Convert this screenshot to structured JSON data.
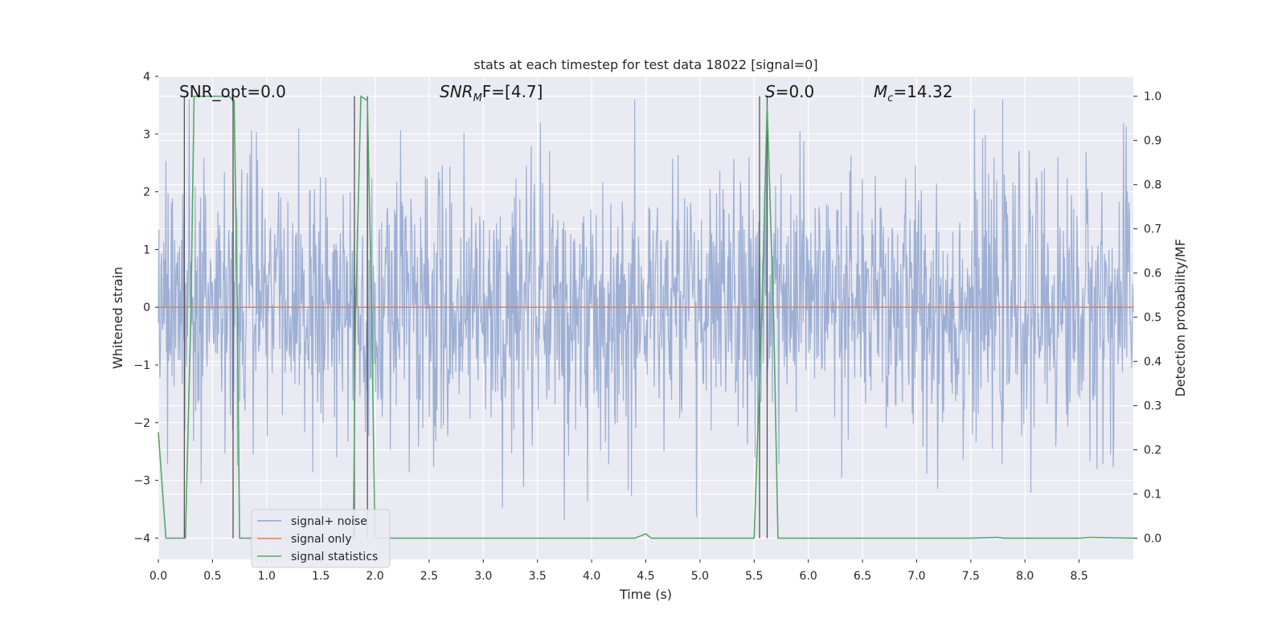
{
  "chart_data": {
    "type": "line",
    "title": "stats at each timestep for test data 18022 [signal=0]",
    "xlabel": "Time (s)",
    "ylabel_left": "Whitened strain",
    "ylabel_right": "Detection probability/MF",
    "xlim": [
      0.0,
      9.0
    ],
    "ylim_left": [
      -4.37,
      4.0
    ],
    "ylim_right": [
      -0.048,
      1.045
    ],
    "grid": true,
    "legend_position": "lower-left",
    "x_ticks": [
      "0.0",
      "0.5",
      "1.0",
      "1.5",
      "2.0",
      "2.5",
      "3.0",
      "3.5",
      "4.0",
      "4.5",
      "5.0",
      "5.5",
      "6.0",
      "6.5",
      "7.0",
      "7.5",
      "8.0",
      "8.5"
    ],
    "x_tick_values": [
      0,
      0.5,
      1,
      1.5,
      2,
      2.5,
      3,
      3.5,
      4,
      4.5,
      5,
      5.5,
      6,
      6.5,
      7,
      7.5,
      8,
      8.5
    ],
    "y_left_ticks": [
      "−4",
      "−3",
      "−2",
      "−1",
      "0",
      "1",
      "2",
      "3",
      "4"
    ],
    "y_left_tick_values": [
      -4,
      -3,
      -2,
      -1,
      0,
      1,
      2,
      3,
      4
    ],
    "y_right_ticks": [
      "0.0",
      "0.1",
      "0.2",
      "0.3",
      "0.4",
      "0.5",
      "0.6",
      "0.7",
      "0.8",
      "0.9",
      "1.0"
    ],
    "y_right_tick_values": [
      0,
      0.1,
      0.2,
      0.3,
      0.4,
      0.5,
      0.6,
      0.7,
      0.8,
      0.9,
      1.0
    ],
    "annotations": {
      "snr_opt_base": "SNR_opt=0.0",
      "snr_mf_base": "SNR",
      "snr_mf_sub": "M",
      "snr_mf_rest": "F=[4.7]",
      "s_italic": "S",
      "s_rest": "=0.0",
      "mc_base": "M",
      "mc_sub": "c",
      "mc_rest": "=14.32"
    },
    "series": [
      {
        "name": "signal+ noise",
        "color": "#8fa5cf",
        "axis": "left",
        "description_values": {
          "approx_envelope": [
            -2.0,
            2.3
          ],
          "peak_max": 3.6,
          "peak_min": -4.0
        }
      },
      {
        "name": "signal only",
        "color": "#dd8452",
        "axis": "left",
        "x": [
          0.0,
          9.0
        ],
        "values": [
          0.0,
          0.0
        ]
      },
      {
        "name": "signal statistics",
        "color": "#55a868",
        "axis": "right",
        "x": [
          0.0,
          0.07,
          0.25,
          0.3,
          0.33,
          0.65,
          0.7,
          0.73,
          0.75,
          1.8,
          1.82,
          1.87,
          1.93,
          1.97,
          2.0,
          4.4,
          4.5,
          4.55,
          5.5,
          5.57,
          5.62,
          5.68,
          5.72,
          7.5,
          7.75,
          7.8,
          8.5,
          8.6,
          9.0
        ],
        "values": [
          0.24,
          0.0,
          0.0,
          0.5,
          1.0,
          1.0,
          0.99,
          0.5,
          0.0,
          0.0,
          0.5,
          1.0,
          0.99,
          0.5,
          0.0,
          0.0,
          0.01,
          0.0,
          0.0,
          0.5,
          0.98,
          0.5,
          0.0,
          0.0,
          0.002,
          0.0,
          0.0,
          0.002,
          0.0
        ]
      }
    ],
    "vertical_markers_x": [
      0.24,
      0.69,
      1.81,
      1.93,
      5.55,
      5.62
    ]
  }
}
